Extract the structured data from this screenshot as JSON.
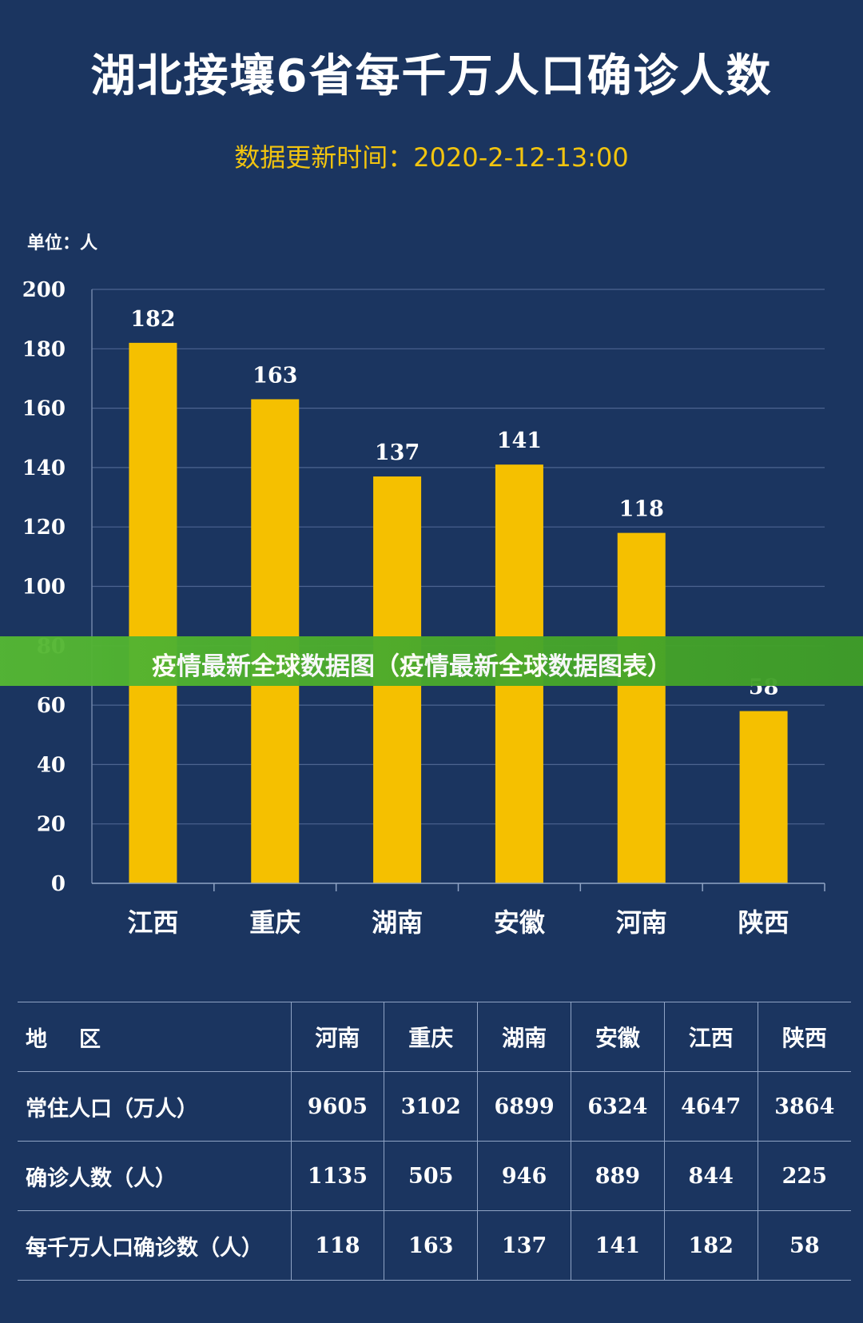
{
  "title": "湖北接壤6省每千万人口确诊人数",
  "subtitle": "数据更新时间：2020-2-12-13:00",
  "unit_label": "单位：人",
  "banner": {
    "text": "疫情最新全球数据图（疫情最新全球数据图表）"
  },
  "colors": {
    "background": "#1b3560",
    "bar": "#f5c000",
    "subtitle": "#f2c40f",
    "grid": "#4d6590",
    "banner": "#4aaa2c"
  },
  "chart_data": {
    "type": "bar",
    "categories": [
      "江西",
      "重庆",
      "湖南",
      "安徽",
      "河南",
      "陕西"
    ],
    "values": [
      182,
      163,
      137,
      141,
      118,
      58
    ],
    "ylim": [
      0,
      200
    ],
    "yticks": [
      0,
      20,
      40,
      60,
      80,
      100,
      120,
      140,
      160,
      180,
      200
    ],
    "grid": true
  },
  "table": {
    "header_label": "地区",
    "columns": [
      "河南",
      "重庆",
      "湖南",
      "安徽",
      "江西",
      "陕西"
    ],
    "rows": [
      {
        "label": "常住人口（万人）",
        "values": [
          "9605",
          "3102",
          "6899",
          "6324",
          "4647",
          "3864"
        ]
      },
      {
        "label": "确诊人数（人）",
        "values": [
          "1135",
          "505",
          "946",
          "889",
          "844",
          "225"
        ]
      },
      {
        "label": "每千万人口确诊数（人）",
        "values": [
          "118",
          "163",
          "137",
          "141",
          "182",
          "58"
        ]
      }
    ]
  }
}
